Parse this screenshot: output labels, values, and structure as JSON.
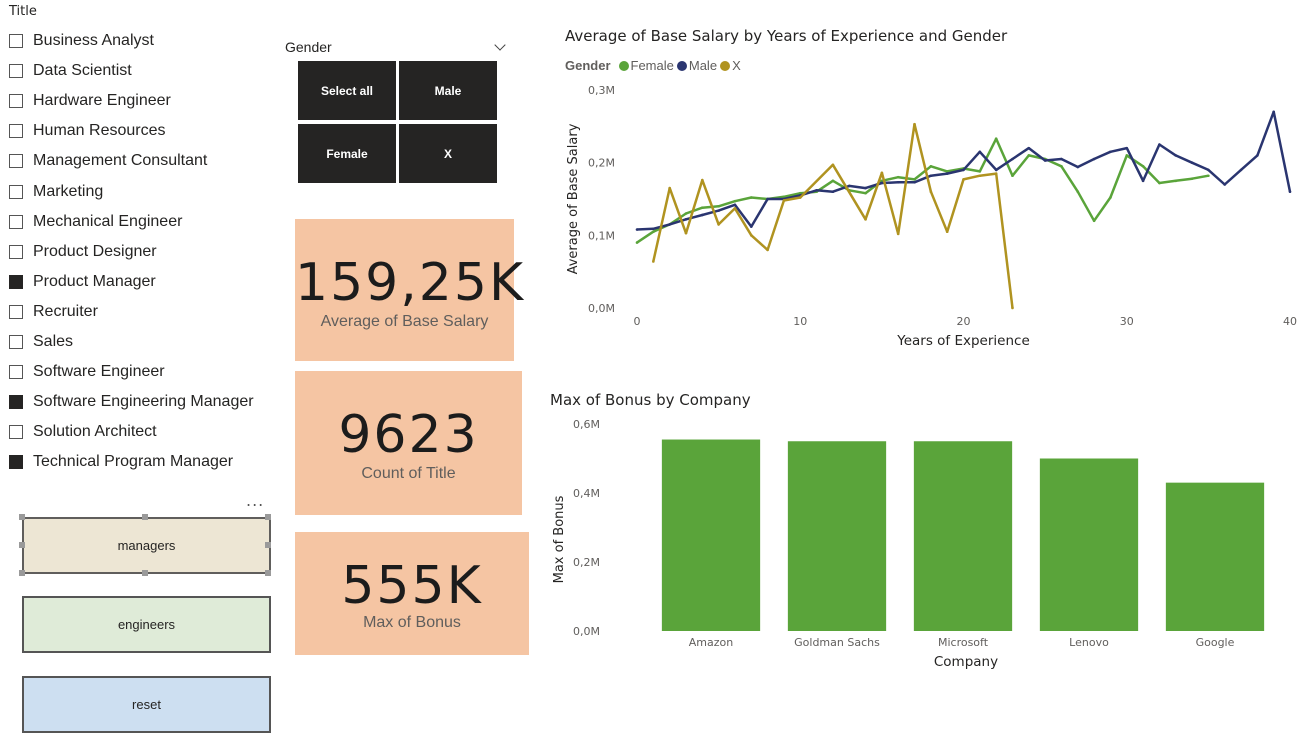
{
  "title_slicer": {
    "header": "Title",
    "items": [
      {
        "label": "Business Analyst",
        "checked": false
      },
      {
        "label": "Data Scientist",
        "checked": false
      },
      {
        "label": "Hardware Engineer",
        "checked": false
      },
      {
        "label": "Human Resources",
        "checked": false
      },
      {
        "label": "Management Consultant",
        "checked": false
      },
      {
        "label": "Marketing",
        "checked": false
      },
      {
        "label": "Mechanical Engineer",
        "checked": false
      },
      {
        "label": "Product Designer",
        "checked": false
      },
      {
        "label": "Product Manager",
        "checked": true
      },
      {
        "label": "Recruiter",
        "checked": false
      },
      {
        "label": "Sales",
        "checked": false
      },
      {
        "label": "Software Engineer",
        "checked": false
      },
      {
        "label": "Software Engineering Manager",
        "checked": true
      },
      {
        "label": "Solution Architect",
        "checked": false
      },
      {
        "label": "Technical Program Manager",
        "checked": true
      }
    ],
    "more_label": "..."
  },
  "bookmarks": {
    "managers": "managers",
    "engineers": "engineers",
    "reset": "reset"
  },
  "gender_slicer": {
    "header": "Gender",
    "tiles": [
      "Select all",
      "Male",
      "Female",
      "X"
    ]
  },
  "cards": {
    "avg_salary": {
      "value": "159,25K",
      "label": "Average of Base Salary"
    },
    "count_title": {
      "value": "9623",
      "label": "Count of Title"
    },
    "max_bonus": {
      "value": "555K",
      "label": "Max of Bonus"
    }
  },
  "chart_data": [
    {
      "type": "line",
      "title": "Average of Base Salary by Years of Experience and Gender",
      "xlabel": "Years of Experience",
      "ylabel": "Average of Base Salary",
      "legend_title": "Gender",
      "legend_position": "top-left",
      "xlim": [
        0,
        40
      ],
      "ylim": [
        0,
        300000
      ],
      "x_ticks": [
        "0",
        "10",
        "20",
        "30",
        "40"
      ],
      "y_ticks": [
        "0,0M",
        "0,1M",
        "0,2M",
        "0,3M"
      ],
      "grid": false,
      "series": [
        {
          "name": "Female",
          "color": "#5aa43a",
          "x": [
            0,
            1,
            2,
            3,
            4,
            5,
            6,
            7,
            8,
            9,
            10,
            11,
            12,
            13,
            14,
            15,
            16,
            17,
            18,
            19,
            20,
            21,
            22,
            23,
            24,
            25,
            26,
            27,
            28,
            29,
            30,
            31,
            32,
            33,
            34,
            35
          ],
          "y": [
            90000,
            105000,
            115000,
            130000,
            138000,
            140000,
            147000,
            152000,
            150000,
            153000,
            158000,
            160000,
            175000,
            162000,
            158000,
            175000,
            180000,
            177000,
            195000,
            188000,
            192000,
            188000,
            233000,
            182000,
            210000,
            205000,
            195000,
            160000,
            120000,
            152000,
            210000,
            195000,
            172000,
            175000,
            178000,
            182000
          ]
        },
        {
          "name": "Male",
          "color": "#2a3570",
          "x": [
            0,
            1,
            2,
            3,
            4,
            5,
            6,
            7,
            8,
            9,
            10,
            11,
            12,
            13,
            14,
            15,
            16,
            17,
            18,
            19,
            20,
            21,
            22,
            23,
            24,
            25,
            26,
            27,
            28,
            29,
            30,
            31,
            32,
            33,
            34,
            35,
            36,
            37,
            38,
            39,
            40
          ],
          "y": [
            108000,
            109000,
            115000,
            122000,
            128000,
            134000,
            142000,
            112000,
            150000,
            150000,
            155000,
            162000,
            160000,
            168000,
            165000,
            172000,
            173000,
            173000,
            182000,
            185000,
            190000,
            215000,
            190000,
            205000,
            220000,
            203000,
            205000,
            194000,
            205000,
            215000,
            220000,
            175000,
            225000,
            210000,
            200000,
            190000,
            170000,
            190000,
            210000,
            270000,
            160000
          ]
        },
        {
          "name": "X",
          "color": "#b09320",
          "x": [
            1,
            2,
            3,
            4,
            5,
            6,
            7,
            8,
            9,
            10,
            12,
            14,
            15,
            16,
            17,
            18,
            19,
            20,
            21,
            22,
            23
          ],
          "y": [
            64000,
            165000,
            103000,
            176000,
            115000,
            137000,
            100000,
            80000,
            148000,
            152000,
            197000,
            122000,
            186000,
            102000,
            253000,
            160000,
            105000,
            177000,
            182000,
            185000,
            0
          ]
        }
      ]
    },
    {
      "type": "bar",
      "title": "Max of Bonus by Company",
      "xlabel": "Company",
      "ylabel": "Max of Bonus",
      "categories": [
        "Amazon",
        "Goldman Sachs",
        "Microsoft",
        "Lenovo",
        "Google"
      ],
      "values": [
        555000,
        550000,
        550000,
        500000,
        430000
      ],
      "ylim": [
        0,
        600000
      ],
      "y_ticks": [
        "0,0M",
        "0,2M",
        "0,4M",
        "0,6M"
      ],
      "bar_color": "#5aa43a",
      "grid": false
    }
  ]
}
